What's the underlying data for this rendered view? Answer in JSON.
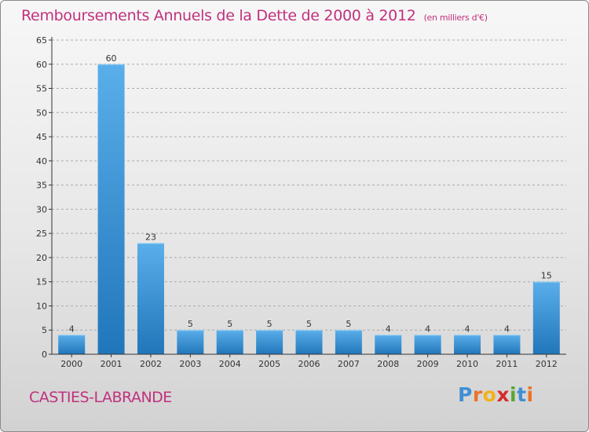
{
  "header": {
    "title": "Remboursements Annuels de la Dette de 2000 à 2012",
    "unit": "(en milliers d'€)"
  },
  "footer": {
    "commune": "CASTIES-LABRANDE",
    "logo_letters": [
      "P",
      "r",
      "o",
      "x",
      "i",
      "t",
      "i"
    ],
    "logo_colors": [
      "#3f8fd6",
      "#e8732a",
      "#f2b21a",
      "#d62c2c",
      "#59a632",
      "#3f8fd6",
      "#e8732a"
    ]
  },
  "colors": {
    "title": "#c0317d",
    "bar_top": "#5aaeea",
    "bar_bottom": "#2176ba",
    "axis": "#333333",
    "grid": "#aaaaaa"
  },
  "chart_data": {
    "type": "bar",
    "title": "Remboursements Annuels de la Dette de 2000 à 2012",
    "subtitle": "(en milliers d'€)",
    "xlabel": "",
    "ylabel": "",
    "categories": [
      "2000",
      "2001",
      "2002",
      "2003",
      "2004",
      "2005",
      "2006",
      "2007",
      "2008",
      "2009",
      "2010",
      "2011",
      "2012"
    ],
    "values": [
      4,
      60,
      23,
      5,
      5,
      5,
      5,
      5,
      4,
      4,
      4,
      4,
      15
    ],
    "ylim": [
      0,
      65
    ],
    "yticks": [
      0,
      5,
      10,
      15,
      20,
      25,
      30,
      35,
      40,
      45,
      50,
      55,
      60,
      65
    ],
    "grid": true,
    "data_labels": true
  }
}
